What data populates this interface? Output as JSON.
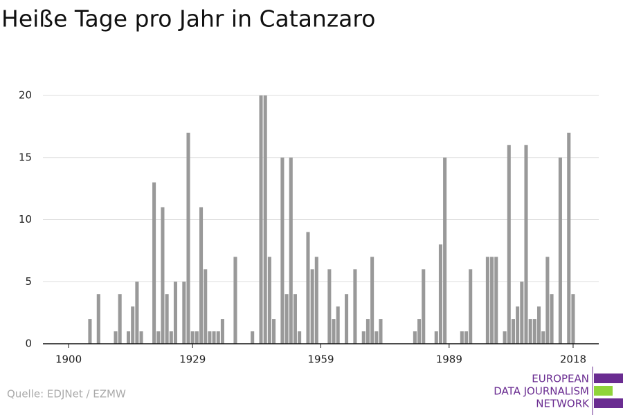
{
  "chart_data": {
    "type": "bar",
    "title": "Heiße Tage pro Jahr in Catanzaro",
    "source": "Quelle: EDJNet / EZMW",
    "logo": [
      "EUROPEAN",
      "DATA JOURNALISM",
      "NETWORK"
    ],
    "color": "#999999",
    "x": [
      1905,
      1907,
      1911,
      1912,
      1914,
      1915,
      1916,
      1917,
      1920,
      1921,
      1922,
      1923,
      1924,
      1925,
      1927,
      1928,
      1929,
      1930,
      1931,
      1932,
      1933,
      1934,
      1935,
      1936,
      1939,
      1943,
      1945,
      1946,
      1947,
      1948,
      1950,
      1951,
      1952,
      1953,
      1954,
      1956,
      1957,
      1958,
      1961,
      1962,
      1963,
      1965,
      1967,
      1969,
      1970,
      1971,
      1972,
      1973,
      1981,
      1982,
      1983,
      1986,
      1987,
      1988,
      1992,
      1993,
      1994,
      1998,
      1999,
      2000,
      2002,
      2003,
      2004,
      2005,
      2006,
      2007,
      2008,
      2009,
      2010,
      2011,
      2012,
      2013,
      2015,
      2017,
      2018
    ],
    "values": [
      2,
      4,
      1,
      4,
      1,
      3,
      5,
      1,
      13,
      1,
      11,
      4,
      1,
      5,
      5,
      17,
      1,
      1,
      11,
      6,
      1,
      1,
      1,
      2,
      7,
      1,
      20,
      20,
      7,
      2,
      15,
      4,
      15,
      4,
      1,
      9,
      6,
      7,
      6,
      2,
      3,
      4,
      6,
      1,
      2,
      7,
      1,
      2,
      1,
      2,
      6,
      1,
      8,
      15,
      1,
      1,
      6,
      7,
      7,
      7,
      1,
      16,
      2,
      3,
      5,
      16,
      2,
      2,
      3,
      1,
      7,
      4,
      15,
      17,
      4
    ],
    "xlim": [
      1894,
      2024
    ],
    "xticks": [
      1900,
      1929,
      1959,
      1989,
      2018
    ],
    "ylim": [
      0,
      20
    ],
    "yticks": [
      0,
      5,
      10,
      15,
      20
    ],
    "grid": true
  }
}
